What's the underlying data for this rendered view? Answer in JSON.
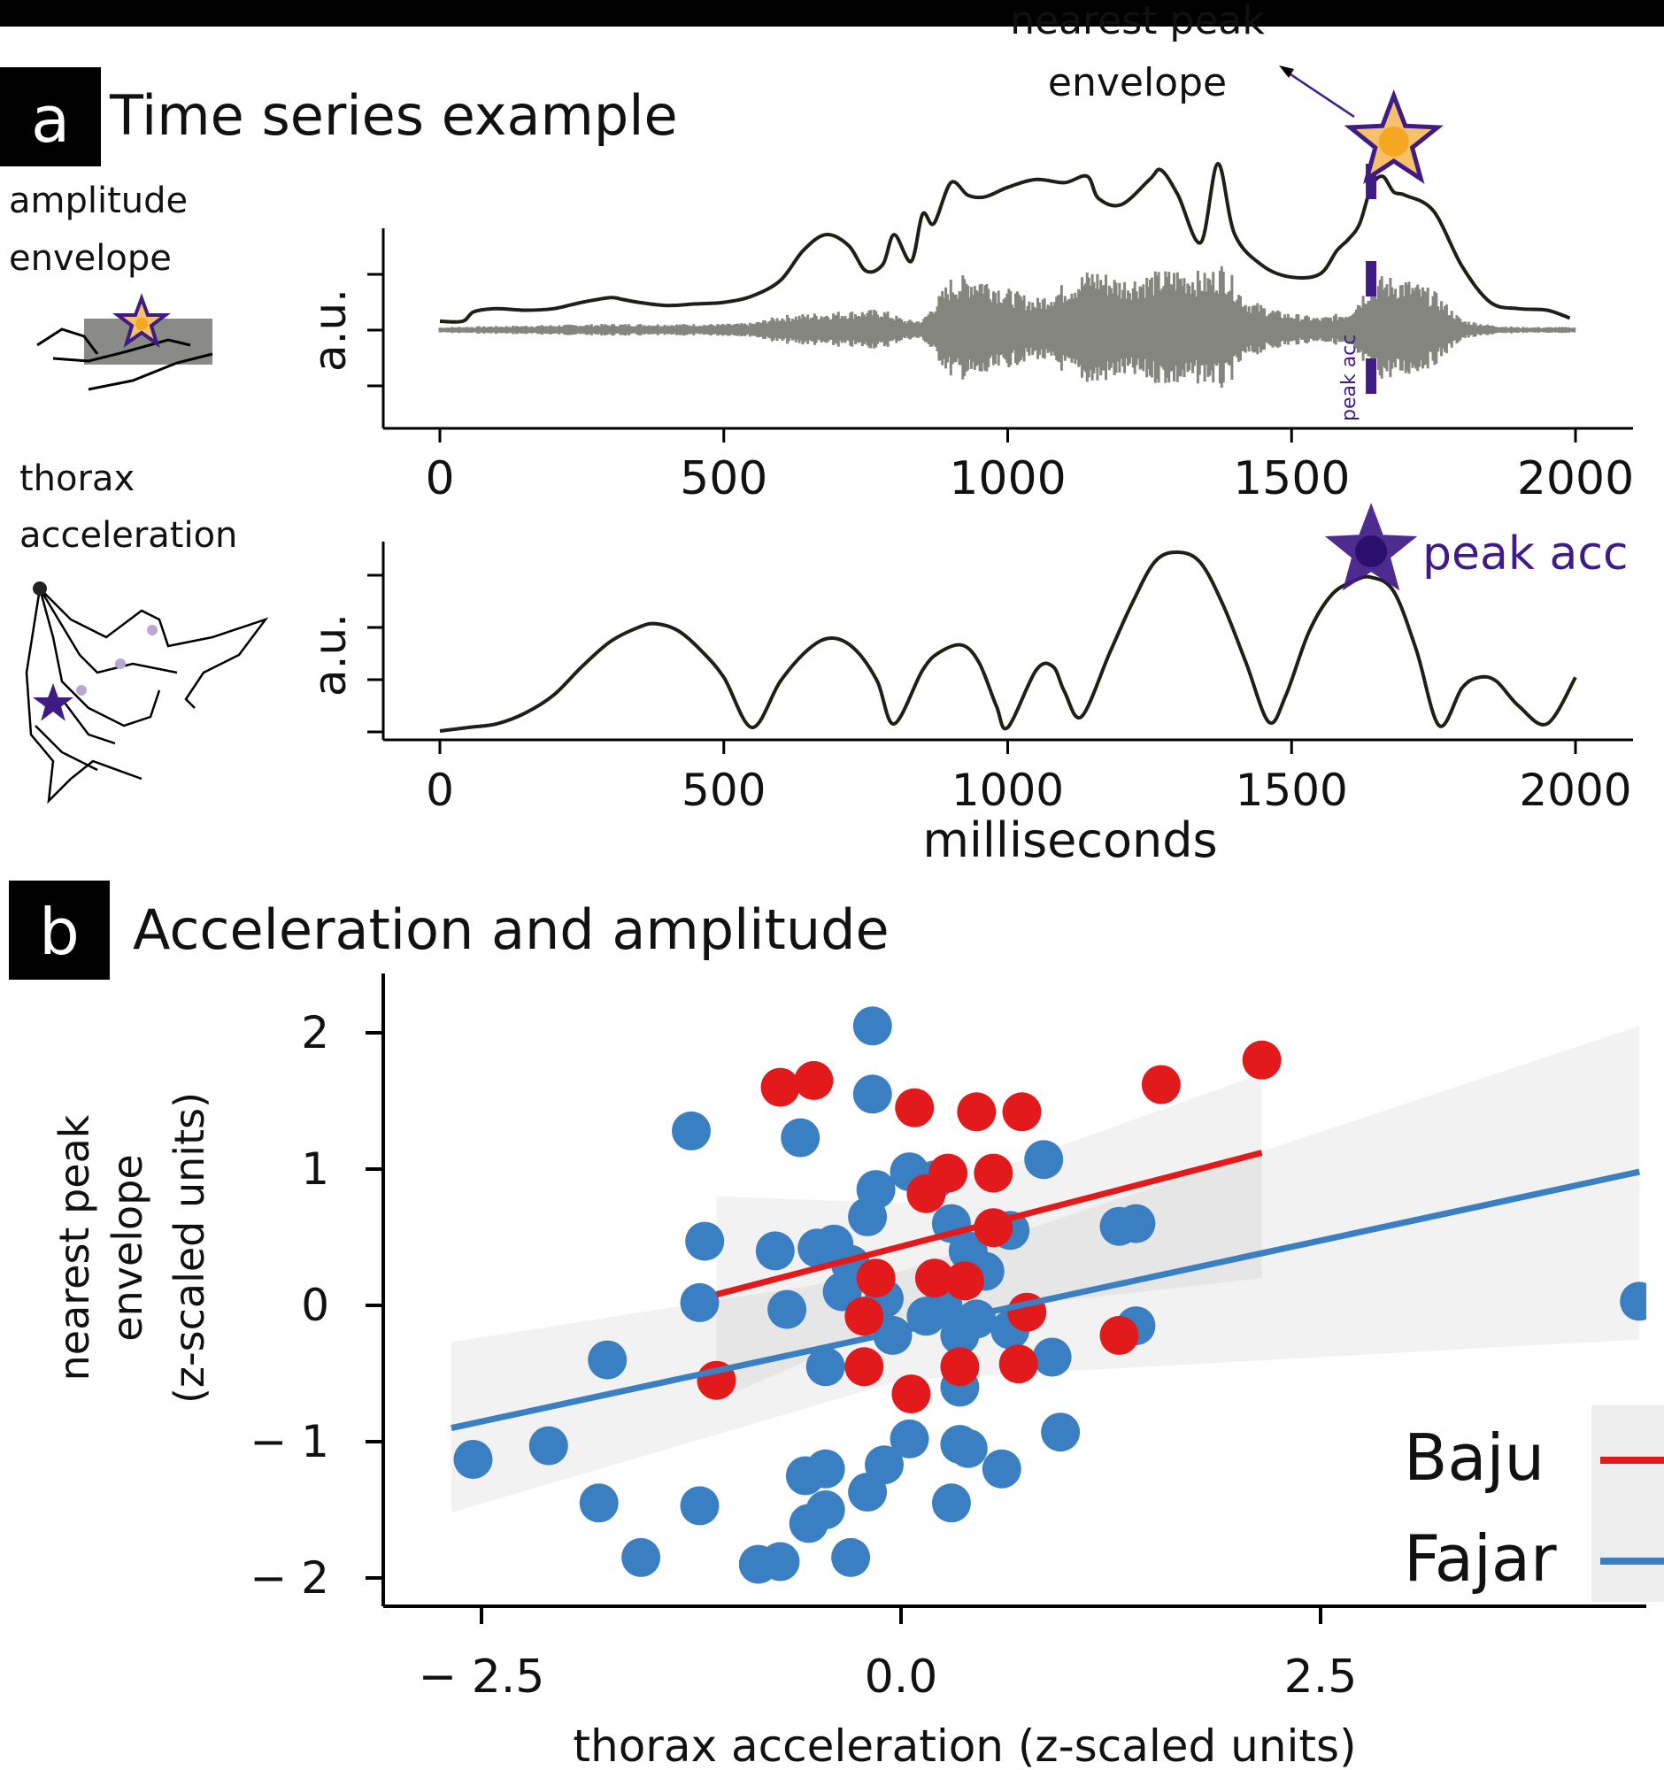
{
  "panel_a": {
    "letter": "a",
    "title": "Time series example",
    "icon_top_label_1": "amplitude",
    "icon_top_label_2": "envelope",
    "icon_bottom_label_1": "thorax",
    "icon_bottom_label_2": "acceleration"
  },
  "panel_b": {
    "letter": "b",
    "title": "Acceleration and amplitude"
  },
  "colors": {
    "baju": "#e31a1c",
    "fajar": "#3a7fc1",
    "purple": "#3f1b86",
    "envelope": "#1f1f16",
    "waveform": "#858580",
    "star_fill": "#f5c26b",
    "star_dot": "#f5a623"
  },
  "chart_data": [
    {
      "type": "line",
      "id": "amplitude-envelope",
      "ylabel": "a.u.",
      "xlim": [
        0,
        2000
      ],
      "xticks": [
        "0",
        "500",
        "1000",
        "1500",
        "2000"
      ],
      "annotation_peak": "nearest peak",
      "annotation_peak2": "envelope",
      "vline_label": "peak acc",
      "vline_x": 1640,
      "star_x": 1680,
      "envelope_series": {
        "x": [
          0,
          40,
          60,
          100,
          150,
          200,
          250,
          300,
          320,
          350,
          400,
          450,
          500,
          550,
          600,
          640,
          680,
          720,
          750,
          780,
          800,
          830,
          850,
          870,
          900,
          930,
          960,
          1000,
          1050,
          1100,
          1140,
          1160,
          1200,
          1250,
          1270,
          1300,
          1340,
          1370,
          1400,
          1450,
          1500,
          1550,
          1580,
          1600,
          1620,
          1640,
          1660,
          1680,
          1700,
          1750,
          1800,
          1850,
          1900,
          1950,
          1990
        ],
        "y": [
          0.0,
          0.0,
          0.06,
          0.08,
          0.07,
          0.08,
          0.12,
          0.15,
          0.14,
          0.12,
          0.1,
          0.11,
          0.12,
          0.16,
          0.26,
          0.45,
          0.55,
          0.48,
          0.32,
          0.36,
          0.55,
          0.38,
          0.68,
          0.62,
          0.88,
          0.8,
          0.79,
          0.85,
          0.9,
          0.88,
          0.92,
          0.78,
          0.74,
          0.9,
          0.96,
          0.8,
          0.5,
          1.0,
          0.55,
          0.35,
          0.28,
          0.3,
          0.45,
          0.52,
          0.62,
          0.85,
          0.92,
          0.82,
          0.8,
          0.7,
          0.35,
          0.12,
          0.08,
          0.07,
          0.02
        ]
      },
      "waveform_bands": {
        "x": [
          0,
          100,
          200,
          300,
          400,
          500,
          550,
          600,
          700,
          780,
          820,
          850,
          900,
          950,
          1000,
          1050,
          1100,
          1150,
          1200,
          1250,
          1300,
          1350,
          1380,
          1420,
          1480,
          1550,
          1600,
          1640,
          1660,
          1700,
          1750,
          1800,
          1850,
          1900,
          2000
        ],
        "amp": [
          0.03,
          0.04,
          0.05,
          0.06,
          0.06,
          0.06,
          0.07,
          0.14,
          0.18,
          0.2,
          0.1,
          0.1,
          0.5,
          0.55,
          0.4,
          0.3,
          0.45,
          0.6,
          0.5,
          0.55,
          0.6,
          0.55,
          0.65,
          0.3,
          0.18,
          0.12,
          0.18,
          0.48,
          0.52,
          0.5,
          0.38,
          0.1,
          0.05,
          0.03,
          0.03
        ]
      }
    },
    {
      "type": "line",
      "id": "thorax-acceleration",
      "ylabel": "a.u.",
      "xlabel": "milliseconds",
      "xlim": [
        0,
        2000
      ],
      "xticks": [
        "0",
        "500",
        "1000",
        "1500",
        "2000"
      ],
      "peak_label": "peak acc",
      "peak_x": 1640,
      "series": {
        "x": [
          0,
          50,
          100,
          150,
          200,
          250,
          300,
          350,
          380,
          420,
          460,
          500,
          550,
          600,
          650,
          690,
          730,
          770,
          800,
          850,
          880,
          920,
          950,
          980,
          1000,
          1050,
          1080,
          1100,
          1130,
          1180,
          1220,
          1260,
          1300,
          1340,
          1380,
          1420,
          1460,
          1490,
          1530,
          1570,
          1610,
          1640,
          1680,
          1720,
          1760,
          1800,
          1830,
          1860,
          1900,
          1950,
          2000
        ],
        "y": [
          0.0,
          0.02,
          0.04,
          0.1,
          0.2,
          0.36,
          0.5,
          0.58,
          0.6,
          0.56,
          0.45,
          0.3,
          0.02,
          0.28,
          0.46,
          0.52,
          0.46,
          0.28,
          0.04,
          0.34,
          0.44,
          0.48,
          0.38,
          0.14,
          0.02,
          0.34,
          0.36,
          0.22,
          0.08,
          0.44,
          0.72,
          0.95,
          1.0,
          0.94,
          0.7,
          0.38,
          0.05,
          0.2,
          0.55,
          0.76,
          0.84,
          0.86,
          0.78,
          0.45,
          0.03,
          0.24,
          0.3,
          0.28,
          0.14,
          0.04,
          0.3
        ]
      }
    },
    {
      "type": "scatter",
      "id": "acceleration-vs-amplitude",
      "xlabel": "thorax acceleration (z-scaled units)",
      "ylabel_lines": [
        "nearest peak",
        "envelope",
        "(z-scaled units)"
      ],
      "xlim": [
        -3.0,
        4.4
      ],
      "ylim": [
        -2.2,
        2.35
      ],
      "xticks": [
        {
          "v": -2.5,
          "label": "− 2.5"
        },
        {
          "v": 0.0,
          "label": "0.0"
        },
        {
          "v": 2.5,
          "label": "2.5"
        }
      ],
      "yticks": [
        {
          "v": 2,
          "label": "2"
        },
        {
          "v": 1,
          "label": "1"
        },
        {
          "v": 0,
          "label": "0"
        },
        {
          "v": -1,
          "label": "− 1"
        },
        {
          "v": -2,
          "label": "− 2"
        }
      ],
      "legend": [
        {
          "name": "Baju",
          "color": "#e31a1c"
        },
        {
          "name": "Fajar",
          "color": "#3a7fc1"
        }
      ],
      "series": [
        {
          "name": "Baju",
          "color": "#e31a1c",
          "fit": {
            "x": [
              -1.1,
              2.15
            ],
            "y": [
              0.08,
              1.12
            ]
          },
          "band": {
            "x": [
              -1.1,
              0.0,
              2.15
            ],
            "upper": [
              0.8,
              0.75,
              1.7
            ],
            "lower": [
              -0.7,
              -0.1,
              0.2
            ]
          },
          "points": [
            [
              -0.72,
              1.6
            ],
            [
              -0.52,
              1.65
            ],
            [
              0.08,
              1.45
            ],
            [
              0.45,
              1.42
            ],
            [
              0.72,
              1.42
            ],
            [
              0.28,
              0.97
            ],
            [
              0.55,
              0.97
            ],
            [
              0.15,
              0.82
            ],
            [
              0.55,
              0.57
            ],
            [
              -0.15,
              0.2
            ],
            [
              0.2,
              0.2
            ],
            [
              0.38,
              0.18
            ],
            [
              -0.22,
              -0.08
            ],
            [
              0.75,
              -0.05
            ],
            [
              1.3,
              -0.22
            ],
            [
              -1.1,
              -0.55
            ],
            [
              -0.22,
              -0.45
            ],
            [
              0.35,
              -0.45
            ],
            [
              0.7,
              -0.43
            ],
            [
              0.06,
              -0.65
            ],
            [
              1.55,
              1.62
            ],
            [
              2.15,
              1.8
            ]
          ]
        },
        {
          "name": "Fajar",
          "color": "#3a7fc1",
          "fit": {
            "x": [
              -2.68,
              4.4
            ],
            "y": [
              -0.9,
              0.98
            ]
          },
          "band": {
            "x": [
              -2.68,
              0.0,
              4.4
            ],
            "upper": [
              -0.27,
              0.25,
              2.05
            ],
            "lower": [
              -1.52,
              -0.55,
              -0.25
            ]
          },
          "points": [
            [
              -0.17,
              2.05
            ],
            [
              -0.17,
              1.55
            ],
            [
              -1.25,
              1.28
            ],
            [
              -0.6,
              1.23
            ],
            [
              0.85,
              1.07
            ],
            [
              0.05,
              0.98
            ],
            [
              0.2,
              0.92
            ],
            [
              -0.15,
              0.85
            ],
            [
              -0.2,
              0.65
            ],
            [
              0.3,
              0.6
            ],
            [
              0.65,
              0.55
            ],
            [
              1.4,
              0.6
            ],
            [
              1.3,
              0.58
            ],
            [
              -1.17,
              0.47
            ],
            [
              -0.75,
              0.4
            ],
            [
              -0.5,
              0.42
            ],
            [
              -0.4,
              0.45
            ],
            [
              0.4,
              0.4
            ],
            [
              -0.3,
              0.3
            ],
            [
              0.5,
              0.25
            ],
            [
              -0.35,
              0.1
            ],
            [
              -0.1,
              0.05
            ],
            [
              0.25,
              0.0
            ],
            [
              -1.2,
              0.02
            ],
            [
              -0.68,
              -0.03
            ],
            [
              0.15,
              -0.08
            ],
            [
              0.45,
              -0.1
            ],
            [
              -0.05,
              -0.22
            ],
            [
              0.35,
              -0.22
            ],
            [
              0.65,
              -0.18
            ],
            [
              1.4,
              -0.15
            ],
            [
              -0.45,
              -0.45
            ],
            [
              0.9,
              -0.38
            ],
            [
              -1.75,
              -0.4
            ],
            [
              0.35,
              -0.6
            ],
            [
              -2.55,
              -1.13
            ],
            [
              -2.1,
              -1.03
            ],
            [
              -1.8,
              -1.45
            ],
            [
              -1.2,
              -1.47
            ],
            [
              -0.57,
              -1.25
            ],
            [
              -0.45,
              -1.2
            ],
            [
              -0.1,
              -1.17
            ],
            [
              0.05,
              -0.98
            ],
            [
              0.35,
              -1.02
            ],
            [
              0.4,
              -1.05
            ],
            [
              0.6,
              -1.2
            ],
            [
              -0.45,
              -1.5
            ],
            [
              -0.55,
              -1.6
            ],
            [
              -0.2,
              -1.37
            ],
            [
              0.3,
              -1.45
            ],
            [
              -1.55,
              -1.85
            ],
            [
              -0.85,
              -1.9
            ],
            [
              -0.72,
              -1.88
            ],
            [
              -0.3,
              -1.85
            ],
            [
              0.95,
              -0.93
            ],
            [
              4.4,
              0.03
            ]
          ]
        }
      ]
    }
  ]
}
